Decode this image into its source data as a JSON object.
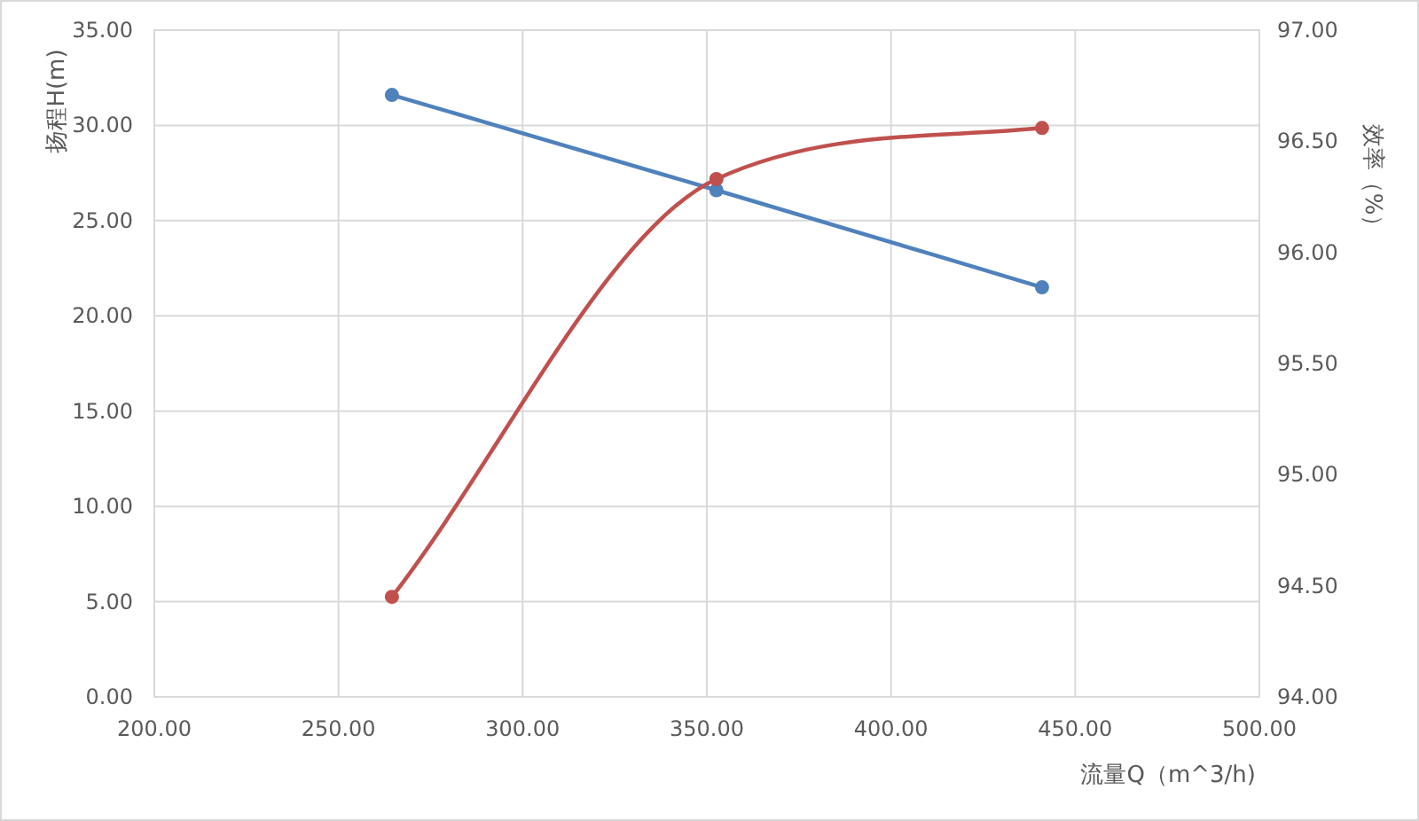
{
  "chart_data": {
    "type": "line",
    "xlabel": "流量Q（m^3/h)",
    "ylabel": "扬程H(m)",
    "y2label": "效率（%）",
    "grid": true,
    "marker": "circle",
    "line_style": "solid",
    "xlim": [
      200,
      500
    ],
    "xticks": [
      {
        "value": 200,
        "label": "200.00"
      },
      {
        "value": 250,
        "label": "250.00"
      },
      {
        "value": 300,
        "label": "300.00"
      },
      {
        "value": 350,
        "label": "350.00"
      },
      {
        "value": 400,
        "label": "400.00"
      },
      {
        "value": 450,
        "label": "450.00"
      },
      {
        "value": 500,
        "label": "500.00"
      }
    ],
    "ylim": [
      0,
      35
    ],
    "yticks": [
      {
        "value": 0,
        "label": "0.00"
      },
      {
        "value": 5,
        "label": "5.00"
      },
      {
        "value": 10,
        "label": "10.00"
      },
      {
        "value": 15,
        "label": "15.00"
      },
      {
        "value": 20,
        "label": "20.00"
      },
      {
        "value": 25,
        "label": "25.00"
      },
      {
        "value": 30,
        "label": "30.00"
      },
      {
        "value": 35,
        "label": "35.00"
      }
    ],
    "y2lim": [
      94,
      97
    ],
    "y2ticks": [
      {
        "value": 94,
        "label": "94.00"
      },
      {
        "value": 94.5,
        "label": "94.50"
      },
      {
        "value": 95,
        "label": "95.00"
      },
      {
        "value": 95.5,
        "label": "95.50"
      },
      {
        "value": 96,
        "label": "96.00"
      },
      {
        "value": 96.5,
        "label": "96.50"
      },
      {
        "value": 97,
        "label": "97.00"
      }
    ],
    "series": [
      {
        "color": "#4f81bd",
        "x": [
          264.5,
          352.6,
          441
        ],
        "values": [
          31.6,
          26.6,
          21.5
        ]
      },
      {
        "color": "#c0504d",
        "axis": "y2",
        "x": [
          264.5,
          352.6,
          441
        ],
        "values": [
          94.45,
          96.33,
          96.56
        ]
      }
    ]
  }
}
